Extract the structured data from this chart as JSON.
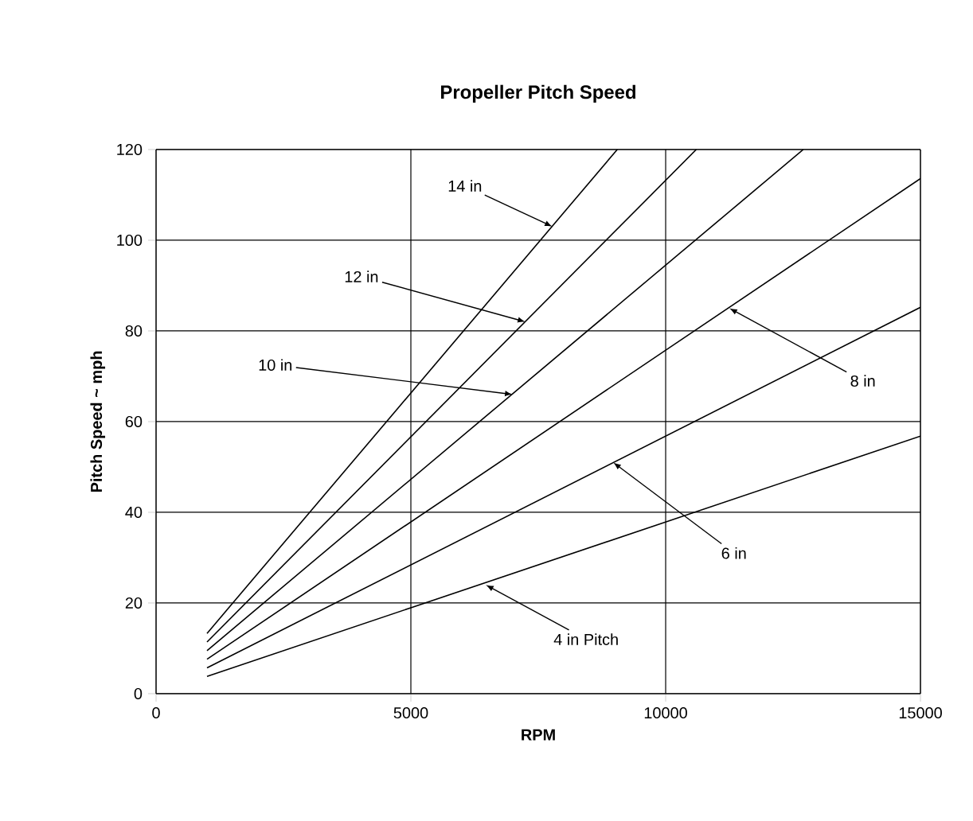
{
  "chart_data": {
    "type": "line",
    "title": "Propeller Pitch Speed",
    "xlabel": "RPM",
    "ylabel": "Pitch Speed ~ mph",
    "xlim": [
      0,
      15000
    ],
    "ylim": [
      0,
      120
    ],
    "xticks": [
      0,
      5000,
      10000,
      15000
    ],
    "yticks": [
      0,
      20,
      40,
      60,
      80,
      100,
      120
    ],
    "grid": true,
    "marker": "none",
    "line_style": "solid",
    "series": [
      {
        "color": "#000000",
        "x": [
          1000,
          15000
        ],
        "values": [
          3.8,
          56.8
        ]
      },
      {
        "color": "#000000",
        "x": [
          1000,
          15000
        ],
        "values": [
          5.7,
          85.2
        ]
      },
      {
        "color": "#000000",
        "x": [
          1000,
          15000
        ],
        "values": [
          7.6,
          113.6
        ]
      },
      {
        "color": "#000000",
        "x": [
          1000,
          12700
        ],
        "values": [
          9.5,
          120
        ]
      },
      {
        "color": "#000000",
        "x": [
          1000,
          10600
        ],
        "values": [
          11.4,
          120
        ]
      },
      {
        "color": "#000000",
        "x": [
          1000,
          9050
        ],
        "values": [
          13.3,
          120
        ]
      }
    ],
    "annotations": [
      {
        "text": "14 in",
        "x": 7780,
        "y": 103
      },
      {
        "text": "12 in",
        "x": 7250,
        "y": 82
      },
      {
        "text": "10 in",
        "x": 7000,
        "y": 66
      },
      {
        "text": "8 in",
        "x": 11250,
        "y": 85
      },
      {
        "text": "6 in",
        "x": 8970,
        "y": 51
      },
      {
        "text": "4 in Pitch",
        "x": 6470,
        "y": 24
      }
    ]
  }
}
